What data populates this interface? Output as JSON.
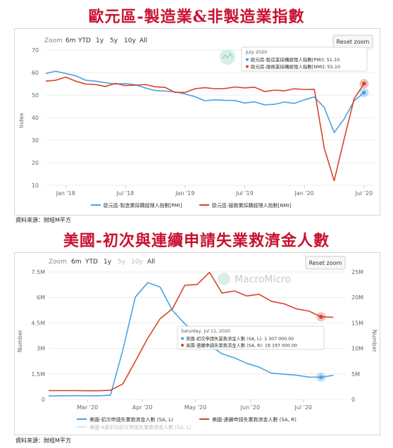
{
  "chart1": {
    "title": "歐元區-製造業&非製造業指數",
    "source": "資料來源：財經M平方",
    "zoom": {
      "label": "Zoom",
      "buttons": [
        "6m",
        "YTD",
        "1y",
        "5y",
        "10y",
        "All"
      ]
    },
    "reset_label": "Reset zoom",
    "tooltip": {
      "date": "July 2020",
      "lines": [
        "歐元區-製造業採購經理人指數[PMI]: 51.10",
        "歐元區-服務業採購經理人指數[NMI]: 55.10"
      ]
    },
    "colors": {
      "pmi": "#4aa3df",
      "nmi": "#d8432b"
    }
  },
  "chart2": {
    "title": "美國-初次與連續申請失業救濟金人數",
    "source": "資料來源：財經M平方",
    "zoom": {
      "label": "Zoom",
      "buttons": [
        "6m",
        "YTD",
        "1y",
        "5y",
        "10y",
        "All"
      ]
    },
    "reset_label": "Reset zoom",
    "watermark": "MacroMicro",
    "tooltip": {
      "date": "Saturday, Jul 11, 2020",
      "lines": [
        "美國-初次申請失業救濟金人數 (SA, L): 1 307 000.00",
        "美國-連續申請失業救濟金人數 (SA, R): 16 197 000.00"
      ]
    },
    "legend_extra": "美國-4週平均初次申請失業救濟金人數 (SA, L)",
    "colors": {
      "initial": "#4aa3df",
      "continuing": "#d8432b"
    }
  },
  "chart_data": [
    {
      "type": "line",
      "title": "",
      "xlabel": "",
      "ylabel": "Index",
      "ylim": [
        10,
        70
      ],
      "yticks": [
        10,
        20,
        30,
        40,
        50,
        60,
        70
      ],
      "xlim": [
        "2017-11",
        "2020-08"
      ],
      "xticks": [
        {
          "x": "2018-01",
          "label": "Jan '18"
        },
        {
          "x": "2018-07",
          "label": "Jul '18"
        },
        {
          "x": "2019-01",
          "label": "Jan '19"
        },
        {
          "x": "2019-07",
          "label": "Jul '19"
        },
        {
          "x": "2020-01",
          "label": "Jan '20"
        },
        {
          "x": "2020-07",
          "label": "Jul '20"
        }
      ],
      "legend_position": "bottom",
      "x": [
        "2017-11",
        "2017-12",
        "2018-01",
        "2018-02",
        "2018-03",
        "2018-04",
        "2018-05",
        "2018-06",
        "2018-07",
        "2018-08",
        "2018-09",
        "2018-10",
        "2018-11",
        "2018-12",
        "2019-01",
        "2019-02",
        "2019-03",
        "2019-04",
        "2019-05",
        "2019-06",
        "2019-07",
        "2019-08",
        "2019-09",
        "2019-10",
        "2019-11",
        "2019-12",
        "2020-01",
        "2020-02",
        "2020-03",
        "2020-04",
        "2020-05",
        "2020-06",
        "2020-07"
      ],
      "series": [
        {
          "name": "歐元區-製造業採購經理人指數[PMI]",
          "values": [
            59.6,
            60.6,
            59.6,
            58.6,
            56.6,
            56.2,
            55.5,
            54.9,
            55.1,
            54.6,
            53.2,
            52.0,
            51.8,
            51.4,
            50.5,
            49.3,
            47.5,
            47.9,
            47.7,
            47.6,
            46.5,
            47.0,
            45.7,
            45.9,
            46.9,
            46.3,
            47.9,
            49.2,
            44.5,
            33.4,
            39.4,
            47.4,
            51.1
          ]
        },
        {
          "name": "歐元區-服務業採購經理人指數[NMI]",
          "values": [
            56.2,
            56.6,
            58.0,
            56.2,
            54.9,
            54.7,
            53.8,
            55.2,
            54.2,
            54.4,
            54.7,
            53.7,
            53.4,
            51.2,
            51.2,
            52.8,
            53.3,
            52.8,
            52.9,
            53.6,
            53.2,
            53.5,
            51.6,
            52.2,
            51.9,
            52.8,
            52.5,
            52.6,
            26.4,
            12.0,
            30.5,
            48.3,
            55.1
          ]
        }
      ]
    },
    {
      "type": "line",
      "title": "",
      "xlabel": "",
      "ylabel_left": "Number",
      "ylabel_right": "Number",
      "ylim_left": [
        0,
        7500000
      ],
      "yticks_left": [
        {
          "v": 0,
          "label": "0"
        },
        {
          "v": 1500000,
          "label": "1.5M"
        },
        {
          "v": 3000000,
          "label": "3M"
        },
        {
          "v": 4500000,
          "label": "4.5M"
        },
        {
          "v": 6000000,
          "label": "6M"
        },
        {
          "v": 7500000,
          "label": "7.5M"
        }
      ],
      "ylim_right": [
        0,
        25000000
      ],
      "yticks_right": [
        {
          "v": 0,
          "label": "0"
        },
        {
          "v": 5000000,
          "label": "5M"
        },
        {
          "v": 10000000,
          "label": "10M"
        },
        {
          "v": 15000000,
          "label": "15M"
        },
        {
          "v": 20000000,
          "label": "20M"
        },
        {
          "v": 25000000,
          "label": "25M"
        }
      ],
      "xlim": [
        "2020-02-08",
        "2020-07-25"
      ],
      "xticks": [
        {
          "x": "2020-03-01",
          "label": "Mar '20"
        },
        {
          "x": "2020-04-01",
          "label": "Apr '20"
        },
        {
          "x": "2020-05-01",
          "label": "May '20"
        },
        {
          "x": "2020-06-01",
          "label": "Jun '20"
        },
        {
          "x": "2020-07-01",
          "label": "Jul '20"
        }
      ],
      "legend_position": "bottom",
      "x": [
        "2020-02-08",
        "2020-02-15",
        "2020-02-22",
        "2020-02-29",
        "2020-03-07",
        "2020-03-14",
        "2020-03-21",
        "2020-03-28",
        "2020-04-04",
        "2020-04-11",
        "2020-04-18",
        "2020-04-25",
        "2020-05-02",
        "2020-05-09",
        "2020-05-16",
        "2020-05-23",
        "2020-05-30",
        "2020-06-06",
        "2020-06-13",
        "2020-06-20",
        "2020-06-27",
        "2020-07-04",
        "2020-07-11",
        "2020-07-18"
      ],
      "series": [
        {
          "name": "美國-初次申請失業救濟金人數 (SA, L)",
          "axis": "left",
          "values": [
            203000,
            210000,
            219000,
            217000,
            211000,
            251000,
            2920000,
            6015000,
            6867000,
            6615000,
            5237000,
            4442000,
            3867000,
            3176000,
            2687000,
            2446000,
            2126000,
            1897000,
            1540000,
            1482000,
            1427000,
            1314000,
            1307000,
            1416000
          ]
        },
        {
          "name": "美國-連續申請失業救濟金人數 (SA, R)",
          "axis": "right",
          "values": [
            1720000,
            1720000,
            1724000,
            1703000,
            1702000,
            1784000,
            3059000,
            7455000,
            11976000,
            15819000,
            17756000,
            22377000,
            22548000,
            24912000,
            20838000,
            21268000,
            20289000,
            20606000,
            19231000,
            18760000,
            17760000,
            17338000,
            16197000,
            16107000
          ]
        }
      ]
    }
  ]
}
